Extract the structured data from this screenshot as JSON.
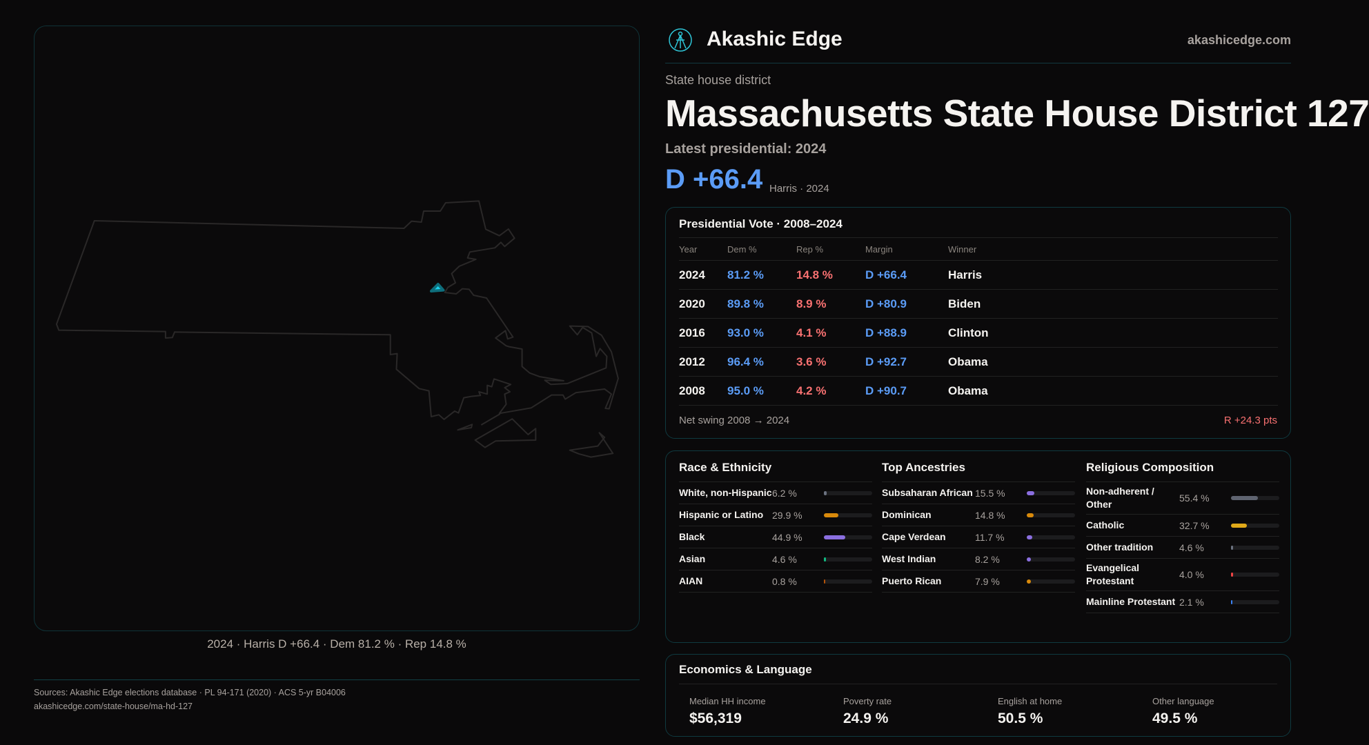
{
  "brand": {
    "name": "Akashic Edge",
    "url": "akashicedge.com"
  },
  "header": {
    "kicker": "State house district",
    "title": "Massachusetts State House District 127",
    "latest": "Latest presidential: 2024",
    "margin": "D +66.4",
    "margin_sub": "Harris · 2024"
  },
  "map": {
    "caption": "2024 · Harris D +66.4 · Dem 81.2 % · Rep 14.8 %",
    "highlight_color": "#19d3ee"
  },
  "presidential": {
    "title": "Presidential Vote · 2008–2024",
    "columns": [
      "Year",
      "Dem %",
      "Rep %",
      "Margin",
      "Winner"
    ],
    "rows": [
      {
        "year": "2024",
        "dem": "81.2 %",
        "rep": "14.8 %",
        "margin": "D +66.4",
        "winner": "Harris"
      },
      {
        "year": "2020",
        "dem": "89.8 %",
        "rep": "8.9 %",
        "margin": "D +80.9",
        "winner": "Biden"
      },
      {
        "year": "2016",
        "dem": "93.0 %",
        "rep": "4.1 %",
        "margin": "D +88.9",
        "winner": "Clinton"
      },
      {
        "year": "2012",
        "dem": "96.4 %",
        "rep": "3.6 %",
        "margin": "D +92.7",
        "winner": "Obama"
      },
      {
        "year": "2008",
        "dem": "95.0 %",
        "rep": "4.2 %",
        "margin": "D +90.7",
        "winner": "Obama"
      }
    ],
    "swing_label": "Net swing 2008 → 2024",
    "swing_value": "R +24.3 pts"
  },
  "demographics": [
    {
      "title": "Race & Ethnicity",
      "items": [
        {
          "label": "White, non-Hispanic",
          "pct": "6.2 %",
          "value": 6.2,
          "color": "#6b7280"
        },
        {
          "label": "Hispanic or Latino",
          "pct": "29.9 %",
          "value": 29.9,
          "color": "#d98a0b"
        },
        {
          "label": "Black",
          "pct": "44.9 %",
          "value": 44.9,
          "color": "#8b6fe0"
        },
        {
          "label": "Asian",
          "pct": "4.6 %",
          "value": 4.6,
          "color": "#10b981"
        },
        {
          "label": "AIAN",
          "pct": "0.8 %",
          "value": 0.8,
          "color": "#b45309"
        }
      ]
    },
    {
      "title": "Top Ancestries",
      "items": [
        {
          "label": "Subsaharan African",
          "pct": "15.5 %",
          "value": 15.5,
          "color": "#8b6fe0"
        },
        {
          "label": "Dominican",
          "pct": "14.8 %",
          "value": 14.8,
          "color": "#d98a0b"
        },
        {
          "label": "Cape Verdean",
          "pct": "11.7 %",
          "value": 11.7,
          "color": "#8b6fe0"
        },
        {
          "label": "West Indian",
          "pct": "8.2 %",
          "value": 8.2,
          "color": "#8b6fe0"
        },
        {
          "label": "Puerto Rican",
          "pct": "7.9 %",
          "value": 7.9,
          "color": "#d98a0b"
        }
      ]
    },
    {
      "title": "Religious Composition",
      "items": [
        {
          "label": "Non-adherent / Other",
          "pct": "55.4 %",
          "value": 55.4,
          "color": "#5f6470"
        },
        {
          "label": "Catholic",
          "pct": "32.7 %",
          "value": 32.7,
          "color": "#e0a919"
        },
        {
          "label": "Other tradition",
          "pct": "4.6 %",
          "value": 4.6,
          "color": "#6b7280"
        },
        {
          "label": "Evangelical Protestant",
          "pct": "4.0 %",
          "value": 4.0,
          "color": "#ef4444"
        },
        {
          "label": "Mainline Protestant",
          "pct": "2.1 %",
          "value": 2.1,
          "color": "#3b82f6"
        }
      ]
    }
  ],
  "economics": {
    "title": "Economics & Language",
    "stats": [
      {
        "label": "Median HH income",
        "value": "$56,319"
      },
      {
        "label": "Poverty rate",
        "value": "24.9 %"
      },
      {
        "label": "English at home",
        "value": "50.5 %"
      },
      {
        "label": "Other language",
        "value": "49.5 %"
      }
    ]
  },
  "footer": {
    "sources": "Sources: Akashic Edge elections database · PL 94-171 (2020) · ACS 5-yr B04006",
    "link": "akashicedge.com/state-house/ma-hd-127"
  }
}
